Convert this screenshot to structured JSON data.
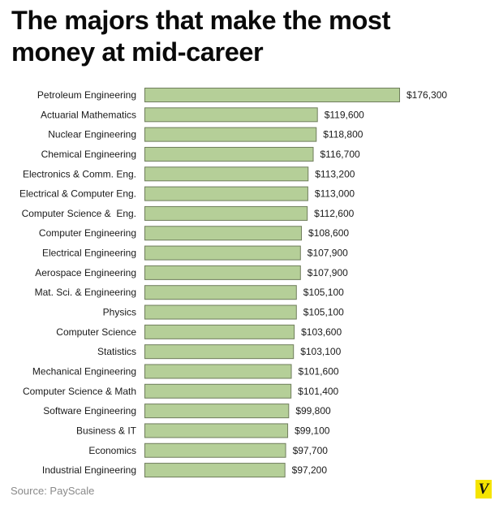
{
  "chart_data": {
    "type": "bar",
    "orientation": "horizontal",
    "title_lines": [
      "The majors that make the most",
      "money at mid-career"
    ],
    "title": "The majors that make the most money at mid-career",
    "categories": [
      "Petroleum Engineering",
      "Actuarial Mathematics",
      "Nuclear Engineering",
      "Chemical Engineering",
      "Electronics & Comm. Eng.",
      "Electrical & Computer Eng.",
      "Computer Science &  Eng.",
      "Computer Engineering",
      "Electrical Engineering",
      "Aerospace Engineering",
      "Mat. Sci. & Engineering",
      "Physics",
      "Computer Science",
      "Statistics",
      "Mechanical Engineering",
      "Computer Science & Math",
      "Software Engineering",
      "Business & IT",
      "Economics",
      "Industrial Engineering"
    ],
    "values": [
      176300,
      119600,
      118800,
      116700,
      113200,
      113000,
      112600,
      108600,
      107900,
      107900,
      105100,
      105100,
      103600,
      103100,
      101600,
      101400,
      99800,
      99100,
      97700,
      97200
    ],
    "value_labels": [
      "$176,300",
      "$119,600",
      "$118,800",
      "$116,700",
      "$113,200",
      "$113,000",
      "$112,600",
      "$108,600",
      "$107,900",
      "$107,900",
      "$105,100",
      "$105,100",
      "$103,600",
      "$103,100",
      "$101,600",
      "$101,400",
      "$99,800",
      "$99,100",
      "$97,700",
      "$97,200"
    ],
    "xlim": [
      0,
      176300
    ],
    "xlabel": "",
    "ylabel": "",
    "grid": false,
    "legend": "none",
    "bar_color": "#b5cf98",
    "bar_edge_color": "#6f7d5c"
  },
  "footer": {
    "source": "Source: PayScale",
    "logo_letter": "V"
  },
  "colors": {
    "logo_background": "#f5e400",
    "source_text": "#8a8a8a"
  }
}
